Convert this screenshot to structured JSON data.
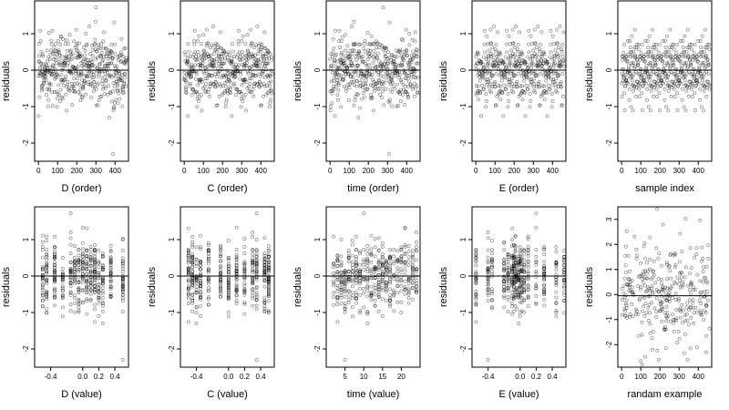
{
  "chart_data": [
    {
      "type": "scatter",
      "xlabel": "D (order)",
      "ylabel": "residuals",
      "xlim": [
        -20,
        470
      ],
      "ylim": [
        -2.5,
        1.9
      ],
      "xticks": [
        0,
        100,
        200,
        300,
        400
      ],
      "xtick_labels": [
        "0",
        "100",
        "200",
        "300",
        "400"
      ],
      "yticks": [
        -2,
        -1,
        0,
        1
      ],
      "ytick_labels": [
        "-2",
        "-1",
        "0",
        "1"
      ],
      "hline": 0,
      "points": []
    },
    {
      "type": "scatter",
      "xlabel": "C (order)",
      "ylabel": "residuals",
      "xlim": [
        -20,
        470
      ],
      "ylim": [
        -2.5,
        1.9
      ],
      "xticks": [
        0,
        100,
        200,
        300,
        400
      ],
      "xtick_labels": [
        "0",
        "100",
        "200",
        "300",
        "400"
      ],
      "yticks": [
        -2,
        -1,
        0,
        1
      ],
      "ytick_labels": [
        "-2",
        "-1",
        "0",
        "1"
      ],
      "hline": 0,
      "points": []
    },
    {
      "type": "scatter",
      "xlabel": "time (order)",
      "ylabel": "residuals",
      "xlim": [
        -20,
        470
      ],
      "ylim": [
        -2.5,
        1.9
      ],
      "xticks": [
        0,
        100,
        200,
        300,
        400
      ],
      "xtick_labels": [
        "0",
        "100",
        "200",
        "300",
        "400"
      ],
      "yticks": [
        -2,
        -1,
        0,
        1
      ],
      "ytick_labels": [
        "-2",
        "-1",
        "0",
        "1"
      ],
      "hline": 0,
      "points": []
    },
    {
      "type": "scatter",
      "xlabel": "E (order)",
      "ylabel": "residuals",
      "xlim": [
        -20,
        470
      ],
      "ylim": [
        -2.5,
        1.9
      ],
      "xticks": [
        0,
        100,
        200,
        300,
        400
      ],
      "xtick_labels": [
        "0",
        "100",
        "200",
        "300",
        "400"
      ],
      "yticks": [
        -2,
        -1,
        0,
        1
      ],
      "ytick_labels": [
        "-2",
        "-1",
        "0",
        "1"
      ],
      "hline": 0,
      "points": []
    },
    {
      "type": "scatter",
      "xlabel": "sample index",
      "ylabel": "residuals",
      "xlim": [
        -20,
        470
      ],
      "ylim": [
        -2.5,
        1.9
      ],
      "xticks": [
        0,
        100,
        200,
        300,
        400
      ],
      "xtick_labels": [
        "0",
        "100",
        "200",
        "300",
        "400"
      ],
      "yticks": [
        -2,
        -1,
        0,
        1
      ],
      "ytick_labels": [
        "-2",
        "-1",
        "0",
        "1"
      ],
      "hline": 0,
      "points": []
    },
    {
      "type": "scatter",
      "xlabel": "D (value)",
      "ylabel": "residuals",
      "xlim": [
        -0.6,
        0.57
      ],
      "ylim": [
        -2.5,
        1.9
      ],
      "xticks": [
        -0.4,
        0.0,
        0.2,
        0.4
      ],
      "xtick_labels": [
        "-0.4",
        "0.0",
        "0.2",
        "0.4"
      ],
      "yticks": [
        -2,
        -1,
        0,
        1
      ],
      "ytick_labels": [
        "-2",
        "-1",
        "0",
        "1"
      ],
      "hline": 0,
      "points": []
    },
    {
      "type": "scatter",
      "xlabel": "C (value)",
      "ylabel": "residuals",
      "xlim": [
        -0.6,
        0.57
      ],
      "ylim": [
        -2.5,
        1.9
      ],
      "xticks": [
        -0.4,
        0.0,
        0.2,
        0.4
      ],
      "xtick_labels": [
        "-0.4",
        "0.0",
        "0.2",
        "0.4"
      ],
      "yticks": [
        -2,
        -1,
        0,
        1
      ],
      "ytick_labels": [
        "-2",
        "-1",
        "0",
        "1"
      ],
      "hline": 0,
      "points": []
    },
    {
      "type": "scatter",
      "xlabel": "time (value)",
      "ylabel": "residuals",
      "xlim": [
        0,
        25
      ],
      "ylim": [
        -2.5,
        1.9
      ],
      "xticks": [
        5,
        10,
        15,
        20
      ],
      "xtick_labels": [
        "5",
        "10",
        "15",
        "20"
      ],
      "yticks": [
        -2,
        -1,
        0,
        1
      ],
      "ytick_labels": [
        "-2",
        "-1",
        "0",
        "1"
      ],
      "hline": 0,
      "points": []
    },
    {
      "type": "scatter",
      "xlabel": "E (value)",
      "ylabel": "residuals",
      "xlim": [
        -0.6,
        0.57
      ],
      "ylim": [
        -2.5,
        1.9
      ],
      "xticks": [
        -0.4,
        0.0,
        0.2,
        0.4
      ],
      "xtick_labels": [
        "-0.4",
        "0.0",
        "0.2",
        "0.4"
      ],
      "yticks": [
        -2,
        -1,
        0,
        1
      ],
      "ytick_labels": [
        "-2",
        "-1",
        "0",
        "1"
      ],
      "hline": 0,
      "points": []
    },
    {
      "type": "scatter",
      "xlabel": "randam example",
      "ylabel": "residuals",
      "xlim": [
        -20,
        470
      ],
      "ylim": [
        -2.9,
        3.5
      ],
      "xticks": [
        0,
        100,
        200,
        300,
        400
      ],
      "xtick_labels": [
        "0",
        "100",
        "200",
        "300",
        "400"
      ],
      "yticks": [
        -2,
        -1,
        0,
        1,
        2,
        3
      ],
      "ytick_labels": [
        "-2",
        "-1",
        "0",
        "1",
        "2",
        "3"
      ],
      "hline": -0.05,
      "points": []
    }
  ]
}
